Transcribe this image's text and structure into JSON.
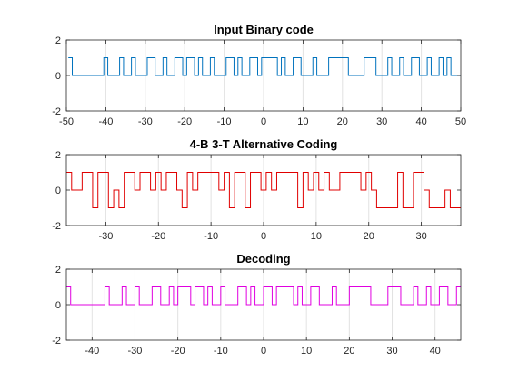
{
  "chart_data": [
    {
      "type": "line",
      "step": true,
      "title": "Input Binary code",
      "color": "#0072BD",
      "grid": "x",
      "xlim": [
        -50,
        50
      ],
      "ylim": [
        -2,
        2
      ],
      "xticks": [
        -50,
        -40,
        -30,
        -20,
        -10,
        0,
        10,
        20,
        30,
        40,
        50
      ],
      "yticks": [
        -2,
        0,
        2
      ],
      "x_start": -49.5,
      "x_step": 1,
      "values": [
        1,
        0,
        0,
        0,
        0,
        0,
        0,
        0,
        0,
        1,
        0,
        0,
        0,
        1,
        0,
        0,
        1,
        0,
        0,
        0,
        1,
        1,
        0,
        0,
        1,
        0,
        0,
        1,
        1,
        0,
        1,
        1,
        0,
        1,
        0,
        0,
        1,
        0,
        0,
        0,
        1,
        1,
        0,
        1,
        0,
        0,
        1,
        1,
        0,
        1,
        1,
        1,
        1,
        0,
        1,
        0,
        0,
        1,
        1,
        0,
        0,
        0,
        1,
        0,
        0,
        0,
        1,
        1,
        1,
        1,
        1,
        0,
        0,
        0,
        0,
        1,
        1,
        1,
        0,
        0,
        0,
        1,
        0,
        0,
        1,
        0,
        0,
        1,
        1,
        0,
        0,
        1,
        0,
        0,
        1,
        0,
        1,
        0,
        0,
        0
      ]
    },
    {
      "type": "line",
      "step": true,
      "title": "4-B 3-T Alternative Coding",
      "color": "#E00000",
      "grid": "x",
      "xlim": [
        -37.5,
        37.5
      ],
      "ylim": [
        -2,
        2
      ],
      "xticks": [
        -30,
        -20,
        -10,
        0,
        10,
        20,
        30
      ],
      "yticks": [
        -2,
        0,
        2
      ],
      "x_start": -37.5,
      "x_step": 1,
      "values": [
        1,
        0,
        0,
        1,
        1,
        -1,
        1,
        1,
        -1,
        0,
        -1,
        1,
        1,
        0,
        1,
        1,
        0,
        1,
        0,
        1,
        1,
        0,
        -1,
        1,
        0,
        1,
        1,
        1,
        1,
        0,
        1,
        -1,
        1,
        1,
        -1,
        1,
        1,
        0,
        1,
        0,
        1,
        1,
        1,
        1,
        -1,
        1,
        0,
        1,
        0,
        1,
        0,
        0,
        1,
        1,
        1,
        1,
        0,
        1,
        0,
        -1,
        -1,
        -1,
        -1,
        1,
        -1,
        -1,
        1,
        1,
        0,
        -1,
        -1,
        -1,
        0,
        -1,
        -1
      ]
    },
    {
      "type": "line",
      "step": true,
      "title": "Decoding",
      "color": "#E000E0",
      "grid": "x",
      "xlim": [
        -46,
        46
      ],
      "ylim": [
        -2,
        2
      ],
      "xticks": [
        -40,
        -30,
        -20,
        -10,
        0,
        10,
        20,
        30,
        40
      ],
      "yticks": [
        -2,
        0,
        2
      ],
      "x_start": -46,
      "x_step": 1,
      "values": [
        1,
        0,
        0,
        0,
        0,
        0,
        0,
        0,
        0,
        1,
        0,
        0,
        0,
        1,
        0,
        0,
        1,
        0,
        0,
        0,
        1,
        1,
        0,
        0,
        1,
        0,
        1,
        1,
        1,
        0,
        1,
        1,
        0,
        1,
        0,
        0,
        1,
        0,
        0,
        0,
        1,
        1,
        0,
        1,
        0,
        0,
        1,
        1,
        0,
        1,
        1,
        1,
        1,
        0,
        1,
        0,
        0,
        1,
        1,
        0,
        0,
        0,
        1,
        0,
        0,
        0,
        1,
        1,
        1,
        1,
        1,
        0,
        0,
        0,
        0,
        1,
        1,
        1,
        0,
        0,
        0,
        1,
        0,
        0,
        1,
        0,
        0,
        1,
        1,
        0,
        0,
        1
      ]
    }
  ]
}
